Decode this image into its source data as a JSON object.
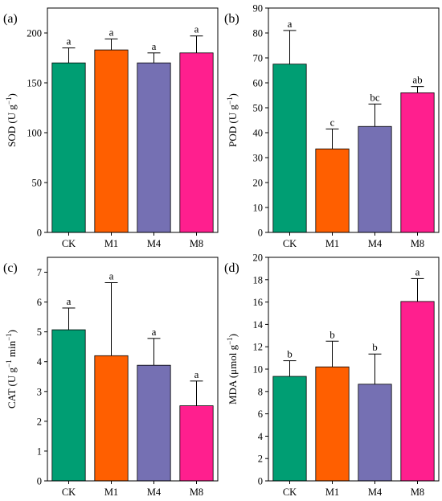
{
  "colors": {
    "CK": "#009e73",
    "M1": "#ff5f00",
    "M4": "#7570b3",
    "M8": "#ff1f8e"
  },
  "chart_data": [
    {
      "type": "bar",
      "panel_label": "(a)",
      "ylabel": "SOD (U g",
      "ylabel_sup": "−1",
      "ylabel_end": ")",
      "categories": [
        "CK",
        "M1",
        "M4",
        "M8"
      ],
      "values": [
        170,
        183,
        170,
        180
      ],
      "errors": [
        15,
        11,
        10,
        17
      ],
      "letters": [
        "a",
        "a",
        "a",
        "a"
      ],
      "ylim": [
        0,
        225
      ],
      "yticks": [
        0,
        50,
        100,
        150,
        200
      ]
    },
    {
      "type": "bar",
      "panel_label": "(b)",
      "ylabel": "POD (U g",
      "ylabel_sup": "−1",
      "ylabel_end": ")",
      "categories": [
        "CK",
        "M1",
        "M4",
        "M8"
      ],
      "values": [
        67.5,
        33.5,
        42.5,
        56
      ],
      "errors": [
        13.5,
        8,
        9,
        2.5
      ],
      "letters": [
        "a",
        "c",
        "bc",
        "ab"
      ],
      "ylim": [
        0,
        90
      ],
      "yticks": [
        0,
        10,
        20,
        30,
        40,
        50,
        60,
        70,
        80,
        90
      ]
    },
    {
      "type": "bar",
      "panel_label": "(c)",
      "ylabel": "CAT (U g",
      "ylabel_sup": "−1",
      "ylabel_mid": " min",
      "ylabel_sup2": "−1",
      "ylabel_end": ")",
      "categories": [
        "CK",
        "M1",
        "M4",
        "M8"
      ],
      "values": [
        5.07,
        4.2,
        3.88,
        2.52
      ],
      "errors": [
        0.73,
        2.45,
        0.9,
        0.83
      ],
      "letters": [
        "a",
        "a",
        "a",
        "a"
      ],
      "ylim": [
        0,
        7.5
      ],
      "yticks": [
        0,
        1,
        2,
        3,
        4,
        5,
        6,
        7
      ]
    },
    {
      "type": "bar",
      "panel_label": "(d)",
      "ylabel": "MDA  (μmol g",
      "ylabel_sup": "−1",
      "ylabel_end": ")",
      "categories": [
        "CK",
        "M1",
        "M4",
        "M8"
      ],
      "values": [
        9.35,
        10.2,
        8.65,
        16.05
      ],
      "errors": [
        1.4,
        2.3,
        2.7,
        2.05
      ],
      "letters": [
        "b",
        "b",
        "b",
        "a"
      ],
      "ylim": [
        0,
        20
      ],
      "yticks": [
        0,
        2,
        4,
        6,
        8,
        10,
        12,
        14,
        16,
        18,
        20
      ]
    }
  ]
}
